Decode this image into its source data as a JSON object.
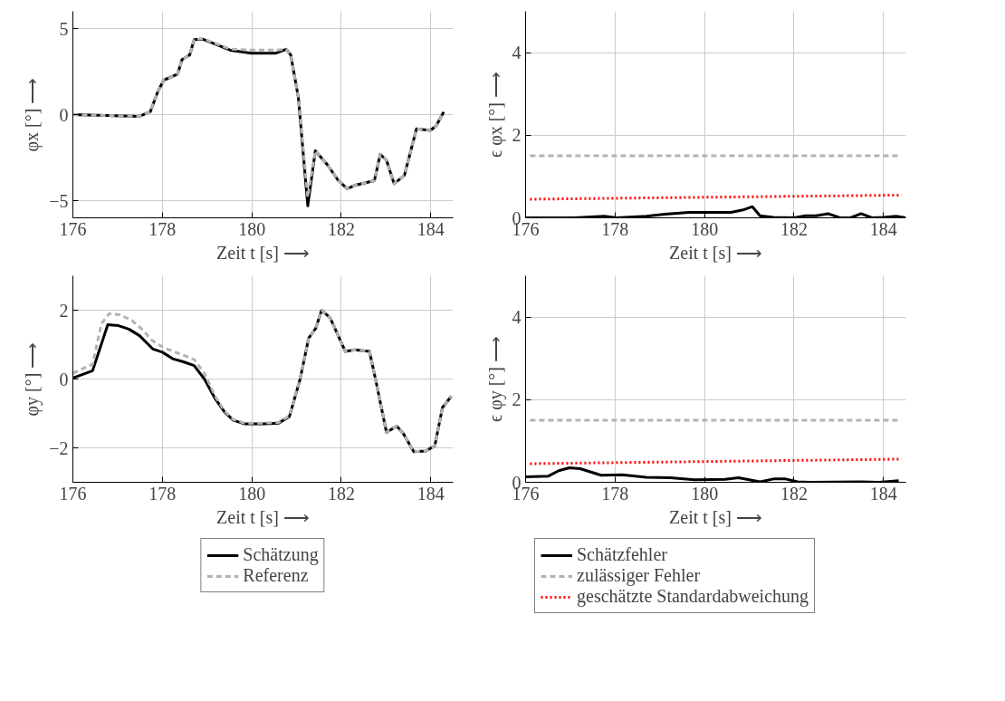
{
  "chart_data": [
    {
      "type": "line",
      "xlabel": "Zeit t [s] ⟶",
      "ylabel": "φx [°] ⟶",
      "xlim": [
        176,
        184.5
      ],
      "ylim": [
        -6,
        6
      ],
      "xticks": [
        176,
        178,
        180,
        182,
        184
      ],
      "yticks": [
        {
          "value": -5,
          "label": "−5"
        },
        0,
        5
      ],
      "grid": true,
      "legend": false,
      "series": [
        {
          "color": "#000000",
          "line_style": "solid",
          "x": [
            176,
            177.49,
            177.73,
            177.9,
            178.03,
            178.34,
            178.44,
            178.61,
            178.71,
            178.91,
            179.52,
            179.99,
            180.54,
            180.77,
            180.87,
            181.04,
            181.25,
            181.42,
            181.69,
            181.92,
            182.13,
            182.33,
            182.74,
            182.87,
            183.01,
            183.18,
            183.41,
            183.68,
            183.99,
            184.12,
            184.29
          ],
          "values": [
            0,
            -0.1,
            0.16,
            1.34,
            2.0,
            2.35,
            3.2,
            3.46,
            4.35,
            4.38,
            3.74,
            3.57,
            3.57,
            3.8,
            3.46,
            0.99,
            -5.3,
            -2.1,
            -2.92,
            -3.79,
            -4.31,
            -4.09,
            -3.84,
            -2.31,
            -2.66,
            -4.02,
            -3.53,
            -0.83,
            -0.92,
            -0.66,
            0.16
          ]
        },
        {
          "color": "#b3b3b3",
          "line_style": "dashed",
          "x": [
            176,
            177.49,
            177.73,
            177.9,
            178.03,
            178.34,
            178.44,
            178.61,
            178.71,
            178.91,
            179.52,
            179.99,
            180.54,
            180.77,
            180.87,
            181.04,
            181.25,
            181.42,
            181.69,
            181.92,
            182.13,
            182.33,
            182.74,
            182.87,
            183.01,
            183.18,
            183.41,
            183.68,
            183.99,
            184.12,
            184.29
          ],
          "values": [
            0,
            -0.1,
            0.16,
            1.34,
            2.0,
            2.35,
            3.2,
            3.46,
            4.4,
            4.4,
            3.8,
            3.75,
            3.75,
            3.8,
            3.46,
            0.99,
            -4.8,
            -2.1,
            -2.92,
            -3.79,
            -4.31,
            -4.09,
            -3.84,
            -2.31,
            -2.66,
            -4.02,
            -3.53,
            -0.83,
            -0.92,
            -0.66,
            0.16
          ]
        }
      ]
    },
    {
      "type": "line",
      "xlabel": "Zeit t [s] ⟶",
      "ylabel": "ϵ φx [°] ⟶",
      "xlim": [
        176,
        184.5
      ],
      "ylim": [
        0,
        5
      ],
      "xticks": [
        176,
        178,
        180,
        182,
        184
      ],
      "yticks": [
        0,
        2,
        4
      ],
      "grid": true,
      "legend": false,
      "series": [
        {
          "color": "#000000",
          "line_style": "solid",
          "x": [
            176,
            177.08,
            177.76,
            178.03,
            178.7,
            179.11,
            179.65,
            180.59,
            180.86,
            181.07,
            181.24,
            181.54,
            182.01,
            182.25,
            182.49,
            182.76,
            183.03,
            183.26,
            183.5,
            183.74,
            184.01,
            184.28,
            184.5
          ],
          "values": [
            0,
            0,
            0.04,
            0,
            0.04,
            0.09,
            0.13,
            0.13,
            0.19,
            0.27,
            0.05,
            0.01,
            0,
            0.05,
            0.05,
            0.1,
            0,
            0,
            0.1,
            0,
            0.01,
            0.04,
            0
          ]
        },
        {
          "color": "#b3b3b3",
          "line_style": "dashed",
          "x": [
            176.1,
            184.4
          ],
          "values": [
            1.5,
            1.5
          ]
        },
        {
          "color": "#ff0000",
          "line_style": "dotted",
          "x": [
            176.1,
            184.4
          ],
          "values": [
            0.45,
            0.55
          ]
        }
      ]
    },
    {
      "type": "line",
      "xlabel": "Zeit t [s] ⟶",
      "ylabel": "φy [°] ⟶",
      "xlim": [
        176,
        184.5
      ],
      "ylim": [
        -3,
        3
      ],
      "xticks": [
        176,
        178,
        180,
        182,
        184
      ],
      "yticks": [
        {
          "value": -2,
          "label": "−2"
        },
        0,
        2
      ],
      "grid": true,
      "legend": "bottom",
      "series": [
        {
          "name": "Schätzung",
          "color": "#000000",
          "line_style": "solid",
          "x": [
            176,
            176.44,
            176.78,
            177.02,
            177.25,
            177.49,
            177.79,
            178.0,
            178.23,
            178.47,
            178.71,
            178.94,
            179.18,
            179.39,
            179.59,
            179.83,
            180.27,
            180.6,
            180.84,
            181.08,
            181.27,
            181.43,
            181.56,
            181.75,
            182.09,
            182.3,
            182.63,
            182.77,
            183.01,
            183.24,
            183.38,
            183.62,
            183.89,
            184.09,
            184.26,
            184.46
          ],
          "values": [
            0.03,
            0.24,
            1.58,
            1.55,
            1.45,
            1.26,
            0.87,
            0.78,
            0.59,
            0.5,
            0.39,
            0.0,
            -0.57,
            -0.96,
            -1.2,
            -1.3,
            -1.3,
            -1.28,
            -1.09,
            0.0,
            1.19,
            1.48,
            2.0,
            1.78,
            0.8,
            0.85,
            0.8,
            -0.04,
            -1.55,
            -1.37,
            -1.57,
            -2.11,
            -2.09,
            -1.94,
            -0.83,
            -0.5
          ]
        },
        {
          "name": "Referenz",
          "color": "#b3b3b3",
          "line_style": "dashed",
          "x": [
            176,
            176.44,
            176.64,
            176.81,
            177.05,
            177.32,
            177.56,
            177.76,
            178.03,
            178.71,
            178.94,
            179.18,
            179.39,
            179.59,
            179.83,
            180.27,
            180.6,
            180.84,
            181.08,
            181.27,
            181.43,
            181.56,
            181.75,
            182.09,
            182.3,
            182.63,
            182.77,
            183.01,
            183.24,
            183.38,
            183.62,
            183.89,
            184.09,
            184.26,
            184.46
          ],
          "values": [
            0.17,
            0.43,
            1.61,
            1.9,
            1.87,
            1.7,
            1.43,
            1.13,
            0.91,
            0.57,
            0.17,
            -0.5,
            -0.93,
            -1.18,
            -1.28,
            -1.28,
            -1.26,
            -1.07,
            0.0,
            1.19,
            1.48,
            2.0,
            1.78,
            0.8,
            0.85,
            0.8,
            -0.04,
            -1.55,
            -1.37,
            -1.57,
            -2.11,
            -2.09,
            -1.94,
            -0.83,
            -0.5
          ]
        }
      ]
    },
    {
      "type": "line",
      "xlabel": "Zeit t [s] ⟶",
      "ylabel": "ϵ φy [°] ⟶",
      "xlim": [
        176,
        184.5
      ],
      "ylim": [
        0,
        5
      ],
      "xticks": [
        176,
        178,
        180,
        182,
        184
      ],
      "yticks": [
        0,
        2,
        4
      ],
      "grid": true,
      "legend": "bottom",
      "series": [
        {
          "name": "Schätzfehler",
          "color": "#000000",
          "line_style": "solid",
          "x": [
            176,
            176.51,
            176.74,
            176.98,
            177.22,
            177.69,
            178.16,
            178.7,
            179.24,
            179.78,
            180.46,
            180.76,
            181.0,
            181.24,
            181.54,
            181.81,
            182.08,
            182.35,
            183.5,
            183.9,
            184.34
          ],
          "values": [
            0.13,
            0.15,
            0.28,
            0.35,
            0.33,
            0.17,
            0.18,
            0.12,
            0.11,
            0.06,
            0.07,
            0.11,
            0.06,
            0.01,
            0.08,
            0.08,
            0.01,
            0,
            0.01,
            0,
            0.04
          ]
        },
        {
          "name": "zulässiger Fehler",
          "color": "#b3b3b3",
          "line_style": "dashed",
          "x": [
            176.1,
            184.4
          ],
          "values": [
            1.5,
            1.5
          ]
        },
        {
          "name": "geschätzte Standardabweichung",
          "color": "#ff0000",
          "line_style": "dotted",
          "x": [
            176.1,
            184.4
          ],
          "values": [
            0.45,
            0.56
          ]
        }
      ]
    }
  ]
}
